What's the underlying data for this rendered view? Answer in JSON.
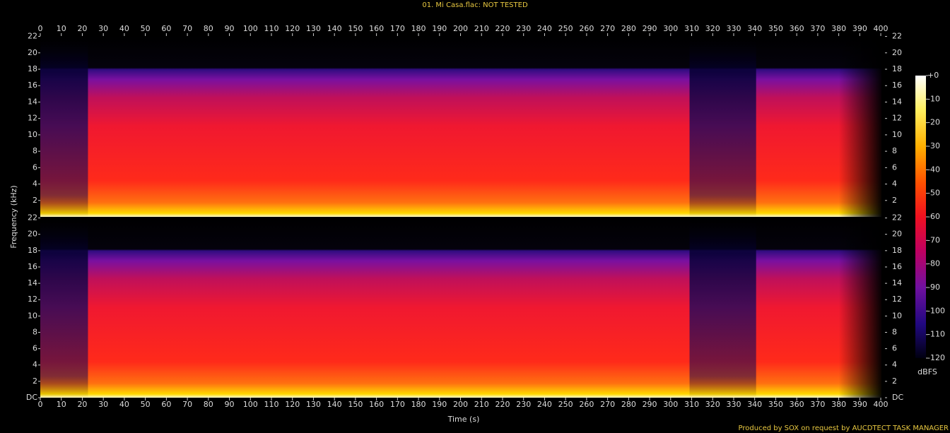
{
  "chart_data": [
    {
      "type": "spectrogram",
      "title": "01. Mi Casa.flac: NOT TESTED",
      "ylabel": "Frequency (kHz)",
      "xlim": [
        0,
        402
      ],
      "xticks": [
        0,
        10,
        20,
        30,
        40,
        50,
        60,
        70,
        80,
        90,
        100,
        110,
        120,
        130,
        140,
        150,
        160,
        170,
        180,
        190,
        200,
        210,
        220,
        230,
        240,
        250,
        260,
        270,
        280,
        290,
        300,
        310,
        320,
        330,
        340,
        350,
        360,
        370,
        380,
        390,
        400
      ],
      "ylim": [
        0,
        22.05
      ],
      "yticks": [
        2,
        4,
        6,
        8,
        10,
        12,
        14,
        16,
        18,
        20,
        22
      ],
      "colorbar": {
        "label": "dBFS",
        "lim": [
          -120,
          0
        ],
        "ticks": [
          {
            "value": 0,
            "label": "+0"
          },
          -10,
          -20,
          -30,
          -40,
          -50,
          -60,
          -70,
          -80,
          -90,
          -100,
          -110,
          -120
        ]
      }
    },
    {
      "type": "spectrogram",
      "xlabel": "Time (s)",
      "xlim": [
        0,
        402
      ],
      "xticks": [
        0,
        10,
        20,
        30,
        40,
        50,
        60,
        70,
        80,
        90,
        100,
        110,
        120,
        130,
        140,
        150,
        160,
        170,
        180,
        190,
        200,
        210,
        220,
        230,
        240,
        250,
        260,
        270,
        280,
        290,
        300,
        310,
        320,
        330,
        340,
        350,
        360,
        370,
        380,
        390,
        400
      ],
      "ylim": [
        0,
        22.05
      ],
      "yticks": [
        {
          "value": 0,
          "label": "DC"
        },
        2,
        4,
        6,
        8,
        10,
        12,
        14,
        16,
        18,
        20,
        22
      ],
      "footer": "Produced by SOX on request by AUCDTECT TASK MANAGER"
    }
  ]
}
